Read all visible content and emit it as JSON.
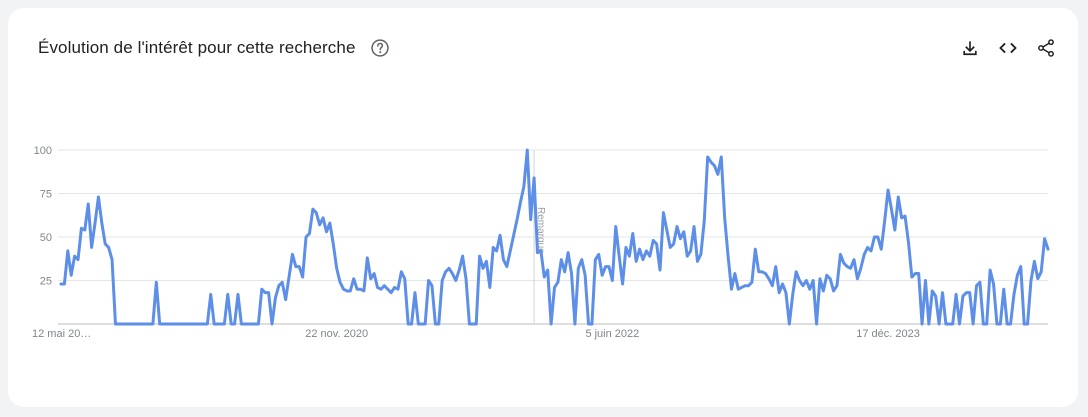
{
  "header": {
    "title": "Évolution de l'intérêt pour cette recherche",
    "help_icon": "help-circle-icon",
    "actions": [
      {
        "name": "download-button",
        "icon": "download-icon"
      },
      {
        "name": "embed-button",
        "icon": "code-icon"
      },
      {
        "name": "share-button",
        "icon": "share-icon"
      }
    ]
  },
  "chart_data": {
    "type": "line",
    "title": "",
    "xlabel": "",
    "ylabel": "",
    "ylim": [
      0,
      100
    ],
    "y_ticks": [
      25,
      50,
      75,
      100
    ],
    "x_tick_labels": [
      "12 mai 20…",
      "22 nov. 2020",
      "5 juin 2022",
      "17 déc. 2023"
    ],
    "x_tick_index": [
      0,
      81,
      162,
      243
    ],
    "annotation": {
      "label": "Remarque",
      "index": 139
    },
    "line_color": "#5e8fe8",
    "grid": true,
    "series": [
      {
        "values": [
          23,
          23,
          42,
          28,
          39,
          37,
          55,
          54,
          69,
          44,
          58,
          73,
          58,
          46,
          44,
          37,
          0,
          0,
          0,
          0,
          0,
          0,
          0,
          0,
          0,
          0,
          0,
          0,
          24,
          0,
          0,
          0,
          0,
          0,
          0,
          0,
          0,
          0,
          0,
          0,
          0,
          0,
          0,
          0,
          17,
          0,
          0,
          0,
          0,
          17,
          0,
          0,
          17,
          0,
          0,
          0,
          0,
          0,
          0,
          20,
          18,
          18,
          0,
          15,
          22,
          24,
          14,
          27,
          40,
          33,
          33,
          27,
          50,
          52,
          66,
          64,
          57,
          61,
          53,
          58,
          46,
          32,
          24,
          20,
          19,
          19,
          26,
          20,
          20,
          19,
          38,
          26,
          29,
          21,
          20,
          22,
          20,
          18,
          21,
          20,
          30,
          26,
          0,
          0,
          18,
          0,
          0,
          0,
          25,
          22,
          0,
          0,
          25,
          30,
          32,
          29,
          25,
          31,
          39,
          26,
          0,
          0,
          0,
          39,
          32,
          36,
          21,
          44,
          42,
          51,
          37,
          33,
          42,
          51,
          60,
          70,
          79,
          100,
          60,
          84,
          41,
          42,
          27,
          31,
          0,
          21,
          24,
          37,
          30,
          41,
          29,
          0,
          32,
          37,
          28,
          0,
          0,
          37,
          40,
          28,
          33,
          33,
          25,
          56,
          39,
          23,
          44,
          39,
          52,
          36,
          43,
          37,
          42,
          39,
          48,
          46,
          31,
          64,
          54,
          44,
          46,
          56,
          49,
          53,
          39,
          42,
          56,
          36,
          40,
          59,
          96,
          93,
          91,
          86,
          96,
          61,
          39,
          20,
          29,
          20,
          21,
          22,
          22,
          24,
          43,
          30,
          30,
          29,
          26,
          22,
          33,
          18,
          23,
          18,
          0,
          17,
          30,
          25,
          22,
          25,
          20,
          25,
          0,
          26,
          19,
          28,
          26,
          19,
          22,
          40,
          35,
          33,
          32,
          37,
          26,
          32,
          40,
          44,
          42,
          50,
          50,
          43,
          59,
          77,
          66,
          54,
          73,
          61,
          62,
          47,
          27,
          29,
          29,
          0,
          25,
          0,
          19,
          16,
          0,
          18,
          0,
          0,
          0,
          17,
          0,
          16,
          18,
          18,
          0,
          22,
          24,
          0,
          0,
          31,
          23,
          0,
          0,
          20,
          0,
          0,
          17,
          28,
          33,
          0,
          0,
          25,
          36,
          26,
          30,
          49,
          43
        ]
      }
    ]
  }
}
